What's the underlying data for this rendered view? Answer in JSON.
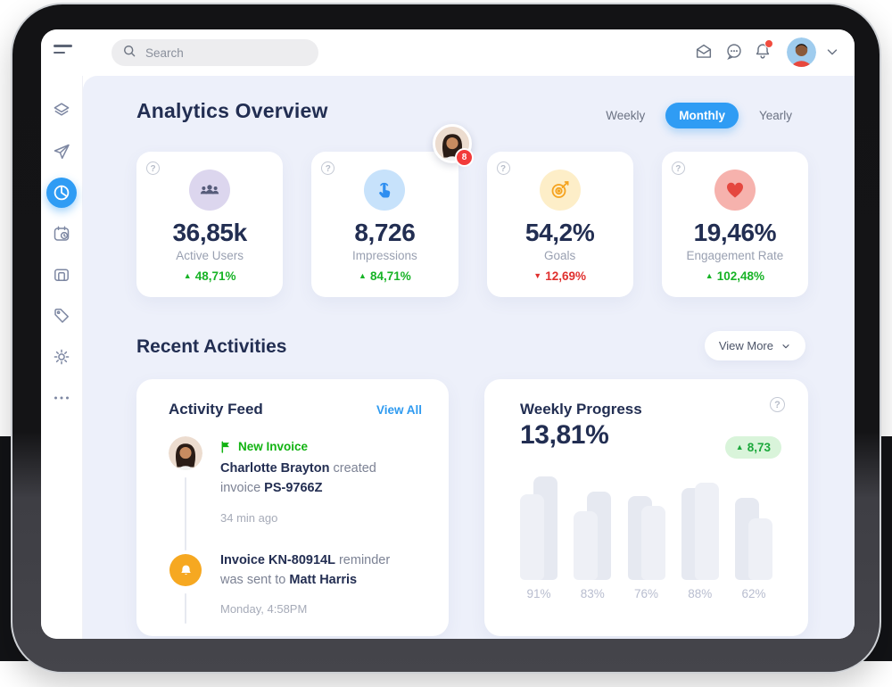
{
  "topbar": {
    "search": {
      "placeholder": "Search",
      "icon": "search-icon"
    },
    "icons": [
      {
        "name": "mail-icon"
      },
      {
        "name": "chat-icon"
      },
      {
        "name": "bell-icon",
        "has_badge_dot": true
      }
    ],
    "profile": {
      "avatar": "man-avatar",
      "chevron": "chevron-down-icon"
    }
  },
  "sidebar": {
    "items": [
      {
        "icon": "layers-icon",
        "active": false
      },
      {
        "icon": "send-icon",
        "active": false
      },
      {
        "icon": "pie-chart-icon",
        "active": true
      },
      {
        "icon": "calendar-clock-icon",
        "active": false
      },
      {
        "icon": "device-icon",
        "active": false
      },
      {
        "icon": "tag-icon",
        "active": false
      },
      {
        "icon": "settings-icon",
        "active": false
      },
      {
        "icon": "more-dots-icon",
        "active": false
      }
    ],
    "active_color": "#2f9cf4"
  },
  "analytics": {
    "title": "Analytics Overview",
    "tabs": [
      {
        "label": "Weekly",
        "active": false
      },
      {
        "label": "Monthly",
        "active": true
      },
      {
        "label": "Yearly",
        "active": false
      }
    ]
  },
  "floating_avatar": {
    "badge": "8",
    "avatar": "woman-avatar"
  },
  "stats": [
    {
      "icon": "users-icon",
      "icon_bg": "#dcd6ee",
      "icon_color": "#565c7a",
      "value": "36,85k",
      "label": "Active Users",
      "delta": "48,71%",
      "direction": "up"
    },
    {
      "icon": "tap-icon",
      "icon_bg": "#c7e2fb",
      "icon_color": "#2e8ef0",
      "value": "8,726",
      "label": "Impressions",
      "delta": "84,71%",
      "direction": "up"
    },
    {
      "icon": "target-icon",
      "icon_bg": "#fdeec8",
      "icon_color": "#f5a31f",
      "value": "54,2%",
      "label": "Goals",
      "delta": "12,69%",
      "direction": "down"
    },
    {
      "icon": "heart-icon",
      "icon_bg": "#f6b2ad",
      "icon_color": "#e5473f",
      "value": "19,46%",
      "label": "Engagement Rate",
      "delta": "102,48%",
      "direction": "up"
    }
  ],
  "recent": {
    "title": "Recent Activities",
    "view_more_label": "View More"
  },
  "activity_feed": {
    "title": "Activity Feed",
    "view_all_label": "View All",
    "items": [
      {
        "avatar": "woman-avatar",
        "tag": "New Invoice",
        "tag_icon": "flag-icon",
        "segments": [
          {
            "text": "Charlotte Brayton",
            "bold": true
          },
          {
            "text": " created invoice ",
            "bold": false
          },
          {
            "text": "PS-9766Z",
            "bold": true
          }
        ],
        "time": "34 min ago"
      },
      {
        "avatar": "bell-icon",
        "tag": "",
        "segments": [
          {
            "text": "Invoice KN-80914L",
            "bold": true
          },
          {
            "text": " reminder was sent to ",
            "bold": false
          },
          {
            "text": "Matt Harris",
            "bold": true
          }
        ],
        "time": "Monday, 4:58PM"
      }
    ]
  },
  "weekly_progress": {
    "title": "Weekly Progress",
    "value": "13,81%",
    "delta": "8,73",
    "direction": "up",
    "help_icon": "question-icon",
    "chart_data": {
      "type": "bar",
      "tick_labels": [
        "91%",
        "83%",
        "76%",
        "88%",
        "62%"
      ],
      "series": [
        {
          "name": "primary",
          "values": [
            91,
            83,
            76,
            88,
            62
          ]
        },
        {
          "name": "secondary",
          "values": [
            75,
            61,
            65,
            86,
            54
          ]
        }
      ],
      "ylim": [
        0,
        100
      ],
      "grid": false,
      "legend": false,
      "groups": [
        {
          "label": "91%",
          "back": 116,
          "front": 96,
          "front_side": "left"
        },
        {
          "label": "83%",
          "back": 99,
          "front": 77,
          "front_side": "left"
        },
        {
          "label": "76%",
          "back": 94,
          "front": 83,
          "front_side": "right"
        },
        {
          "label": "88%",
          "back": 103,
          "front": 109,
          "front_side": "right"
        },
        {
          "label": "62%",
          "back": 92,
          "front": 69,
          "front_side": "right"
        }
      ]
    }
  }
}
